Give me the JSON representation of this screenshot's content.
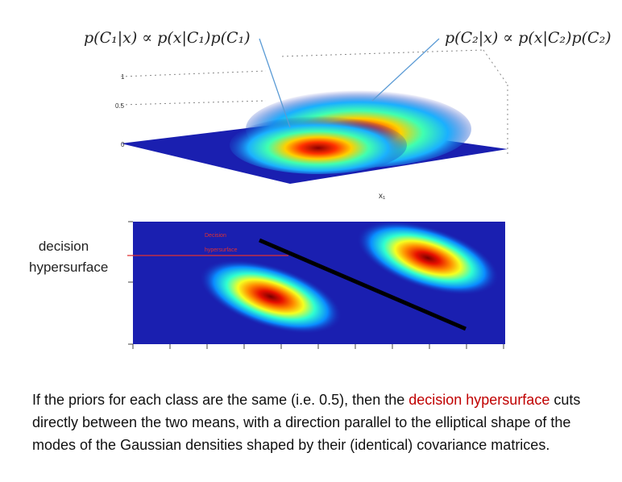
{
  "formulas": {
    "left": "p(C₁|x) ∝ p(x|C₁)p(C₁)",
    "right": "p(C₂|x) ∝ p(x|C₂)p(C₂)"
  },
  "surface_plot": {
    "z_ticks": [
      "1",
      "0.5",
      "0"
    ],
    "axis_label_x1": "x₁"
  },
  "contour_plot": {
    "inner_label_line1": "Decision",
    "inner_label_line2": "hypersurface"
  },
  "side_labels": {
    "line1": "decision",
    "line2": "hypersurface"
  },
  "caption": {
    "part1": "If the priors for each class are the same (i.e. 0.5), then the ",
    "highlight": "decision hypersurface",
    "part2": " cuts directly between the two means, with a direction parallel to the elliptical shape of the modes of the Gaussian densities shaped by their (identical) covariance matrices."
  },
  "colors": {
    "highlight": "#c00000",
    "plot_background": "#1a1fb0",
    "pointer_line": "#5b9bd5",
    "decision_marker": "#e03030",
    "boundary": "#000000"
  }
}
